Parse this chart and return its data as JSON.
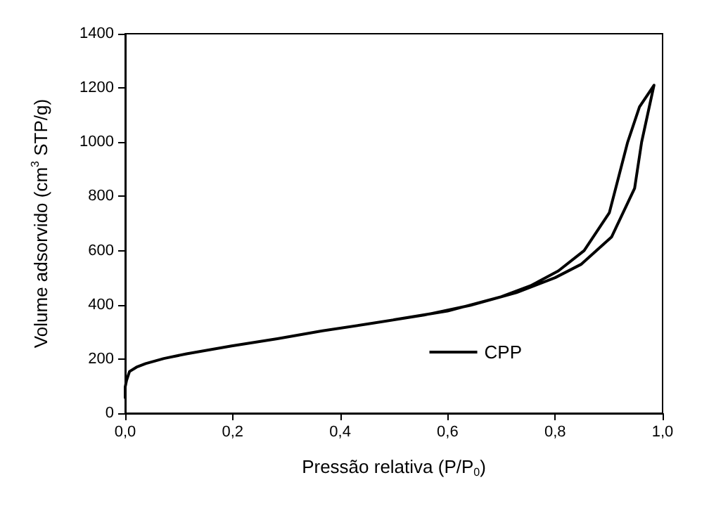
{
  "chart_data": {
    "type": "line",
    "xlabel": "Pressão relativa (P/P$_{0}$)",
    "ylabel": "Volume adsorvido (cm$^{3}$ STP/g)",
    "xlim": [
      0,
      1
    ],
    "ylim": [
      0,
      1400
    ],
    "xticks": [
      {
        "value": 0,
        "label": "0,0"
      },
      {
        "value": 0.2,
        "label": "0,2"
      },
      {
        "value": 0.4,
        "label": "0,4"
      },
      {
        "value": 0.6,
        "label": "0,6"
      },
      {
        "value": 0.8,
        "label": "0,8"
      },
      {
        "value": 1,
        "label": "1,0"
      }
    ],
    "yticks": [
      0,
      200,
      400,
      600,
      800,
      1000,
      1200,
      1400
    ],
    "series": [
      {
        "name": "CPP",
        "color": "#000000",
        "x": [
          0,
          0,
          0.0025,
          0.008,
          0.021,
          0.038,
          0.072,
          0.114,
          0.198,
          0.283,
          0.367,
          0.451,
          0.556,
          0.642,
          0.728,
          0.8,
          0.849,
          0.905,
          0.948,
          0.961,
          0.984,
          0.957,
          0.935,
          0.901,
          0.854,
          0.806,
          0.754,
          0.7,
          0.6,
          0.5
        ],
        "values": [
          57,
          97,
          121,
          154,
          170,
          183,
          202,
          219,
          248,
          275,
          304,
          329,
          362,
          398,
          445,
          500,
          550,
          650,
          830,
          1000,
          1210,
          1130,
          1000,
          740,
          600,
          525,
          470,
          430,
          377,
          345
        ]
      }
    ],
    "legend": "bottom right",
    "grid": false,
    "marker": "none",
    "line_style": "solid"
  }
}
